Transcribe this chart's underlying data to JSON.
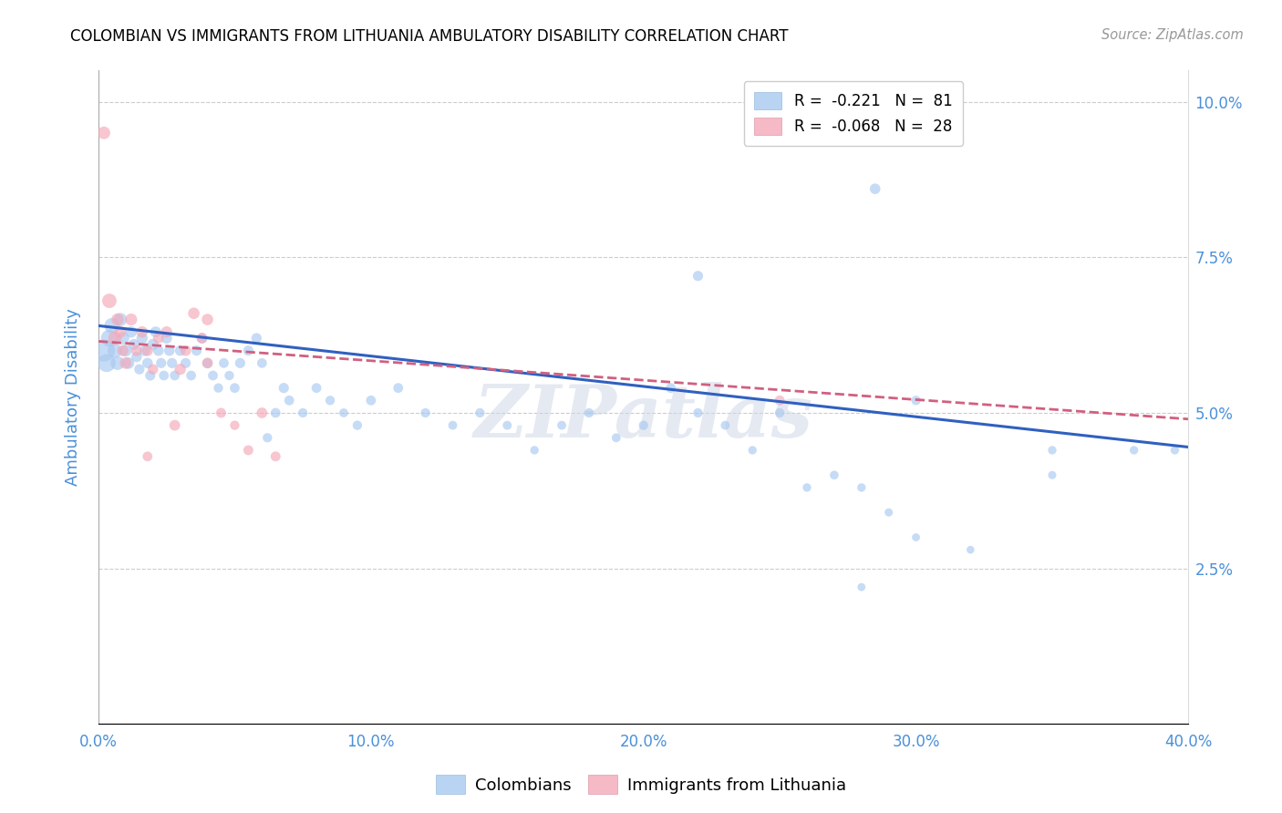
{
  "title": "COLOMBIAN VS IMMIGRANTS FROM LITHUANIA AMBULATORY DISABILITY CORRELATION CHART",
  "source": "Source: ZipAtlas.com",
  "ylabel": "Ambulatory Disability",
  "xlim": [
    0.0,
    0.4
  ],
  "ylim": [
    0.0,
    0.105
  ],
  "yticks": [
    0.025,
    0.05,
    0.075,
    0.1
  ],
  "ytick_labels": [
    "2.5%",
    "5.0%",
    "7.5%",
    "10.0%"
  ],
  "xticks": [
    0.0,
    0.1,
    0.2,
    0.3,
    0.4
  ],
  "xtick_labels": [
    "0.0%",
    "10.0%",
    "20.0%",
    "30.0%",
    "40.0%"
  ],
  "watermark": "ZIPatlas",
  "legend_R_labels": [
    "R =  -0.221   N =  81",
    "R =  -0.068   N =  28"
  ],
  "colombians_color": "#a8c8f0",
  "lithuania_color": "#f4a8b8",
  "blue_line_color": "#3060c0",
  "pink_line_color": "#d06080",
  "tick_color": "#4a90d9",
  "colombians_x": [
    0.002,
    0.003,
    0.004,
    0.005,
    0.006,
    0.007,
    0.008,
    0.009,
    0.01,
    0.011,
    0.012,
    0.013,
    0.014,
    0.015,
    0.016,
    0.017,
    0.018,
    0.019,
    0.02,
    0.021,
    0.022,
    0.023,
    0.024,
    0.025,
    0.026,
    0.027,
    0.028,
    0.03,
    0.032,
    0.034,
    0.036,
    0.038,
    0.04,
    0.042,
    0.044,
    0.046,
    0.048,
    0.05,
    0.052,
    0.055,
    0.058,
    0.06,
    0.062,
    0.065,
    0.068,
    0.07,
    0.075,
    0.08,
    0.085,
    0.09,
    0.095,
    0.1,
    0.11,
    0.12,
    0.13,
    0.14,
    0.15,
    0.16,
    0.17,
    0.18,
    0.19,
    0.2,
    0.21,
    0.22,
    0.23,
    0.24,
    0.25,
    0.26,
    0.27,
    0.28,
    0.29,
    0.3,
    0.32,
    0.35,
    0.38,
    0.22,
    0.285,
    0.3,
    0.28,
    0.35,
    0.395
  ],
  "colombians_y": [
    0.06,
    0.058,
    0.062,
    0.064,
    0.06,
    0.058,
    0.065,
    0.062,
    0.06,
    0.058,
    0.063,
    0.061,
    0.059,
    0.057,
    0.062,
    0.06,
    0.058,
    0.056,
    0.061,
    0.063,
    0.06,
    0.058,
    0.056,
    0.062,
    0.06,
    0.058,
    0.056,
    0.06,
    0.058,
    0.056,
    0.06,
    0.062,
    0.058,
    0.056,
    0.054,
    0.058,
    0.056,
    0.054,
    0.058,
    0.06,
    0.062,
    0.058,
    0.046,
    0.05,
    0.054,
    0.052,
    0.05,
    0.054,
    0.052,
    0.05,
    0.048,
    0.052,
    0.054,
    0.05,
    0.048,
    0.05,
    0.048,
    0.044,
    0.048,
    0.05,
    0.046,
    0.048,
    0.054,
    0.05,
    0.048,
    0.044,
    0.05,
    0.038,
    0.04,
    0.038,
    0.034,
    0.03,
    0.028,
    0.04,
    0.044,
    0.072,
    0.086,
    0.052,
    0.022,
    0.044,
    0.044
  ],
  "colombians_size": [
    300,
    200,
    180,
    150,
    130,
    120,
    110,
    100,
    90,
    85,
    80,
    75,
    70,
    65,
    80,
    75,
    70,
    65,
    80,
    75,
    70,
    65,
    60,
    75,
    70,
    65,
    60,
    70,
    65,
    60,
    65,
    70,
    65,
    60,
    55,
    60,
    55,
    60,
    65,
    65,
    65,
    60,
    55,
    60,
    65,
    60,
    55,
    60,
    55,
    50,
    55,
    60,
    60,
    55,
    50,
    55,
    50,
    45,
    50,
    55,
    50,
    55,
    60,
    55,
    50,
    45,
    55,
    45,
    48,
    45,
    42,
    40,
    38,
    42,
    45,
    65,
    70,
    55,
    40,
    45,
    45
  ],
  "lithuania_x": [
    0.002,
    0.004,
    0.006,
    0.007,
    0.008,
    0.009,
    0.01,
    0.012,
    0.014,
    0.016,
    0.018,
    0.02,
    0.022,
    0.025,
    0.028,
    0.03,
    0.032,
    0.035,
    0.038,
    0.04,
    0.045,
    0.05,
    0.055,
    0.06,
    0.065,
    0.25,
    0.04,
    0.018
  ],
  "lithuania_y": [
    0.095,
    0.068,
    0.062,
    0.065,
    0.063,
    0.06,
    0.058,
    0.065,
    0.06,
    0.063,
    0.06,
    0.057,
    0.062,
    0.063,
    0.048,
    0.057,
    0.06,
    0.066,
    0.062,
    0.065,
    0.05,
    0.048,
    0.044,
    0.05,
    0.043,
    0.052,
    0.058,
    0.043
  ],
  "lithuania_size": [
    100,
    130,
    110,
    95,
    85,
    80,
    85,
    90,
    75,
    82,
    75,
    68,
    72,
    80,
    72,
    80,
    72,
    82,
    72,
    82,
    62,
    55,
    62,
    72,
    62,
    62,
    72,
    60
  ],
  "blue_line_x0": 0.0,
  "blue_line_y0": 0.064,
  "blue_line_x1": 0.4,
  "blue_line_y1": 0.0445,
  "pink_line_x0": 0.0,
  "pink_line_y0": 0.0615,
  "pink_line_x1": 0.4,
  "pink_line_y1": 0.049
}
